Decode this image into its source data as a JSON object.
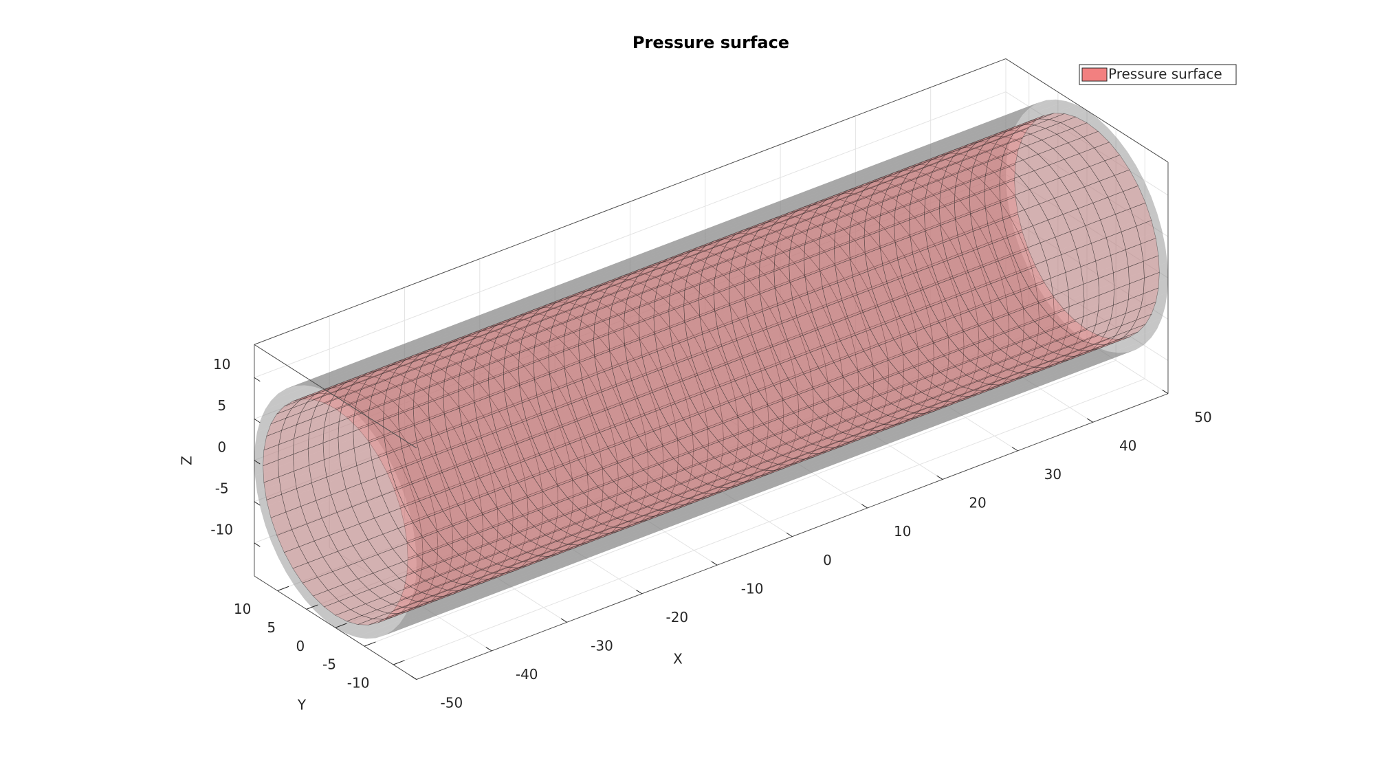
{
  "chart_data": {
    "type": "surface3d",
    "title": "Pressure surface",
    "xlabel": "X",
    "ylabel": "Y",
    "zlabel": "Z",
    "xlim": [
      -50,
      50
    ],
    "ylim": [
      -14,
      14
    ],
    "zlim": [
      -14,
      14
    ],
    "xticks": [
      -50,
      -40,
      -30,
      -20,
      -10,
      0,
      10,
      20,
      30,
      40,
      50
    ],
    "yticks": [
      -10,
      -5,
      0,
      5,
      10
    ],
    "zticks": [
      -10,
      -5,
      0,
      5,
      10
    ],
    "grid": true,
    "legend": "northeast",
    "series": [
      {
        "name": "Pressure surface",
        "color": "#f28080",
        "radius": 12.5
      }
    ],
    "body": {
      "radius": 14,
      "color": "#808080"
    }
  }
}
